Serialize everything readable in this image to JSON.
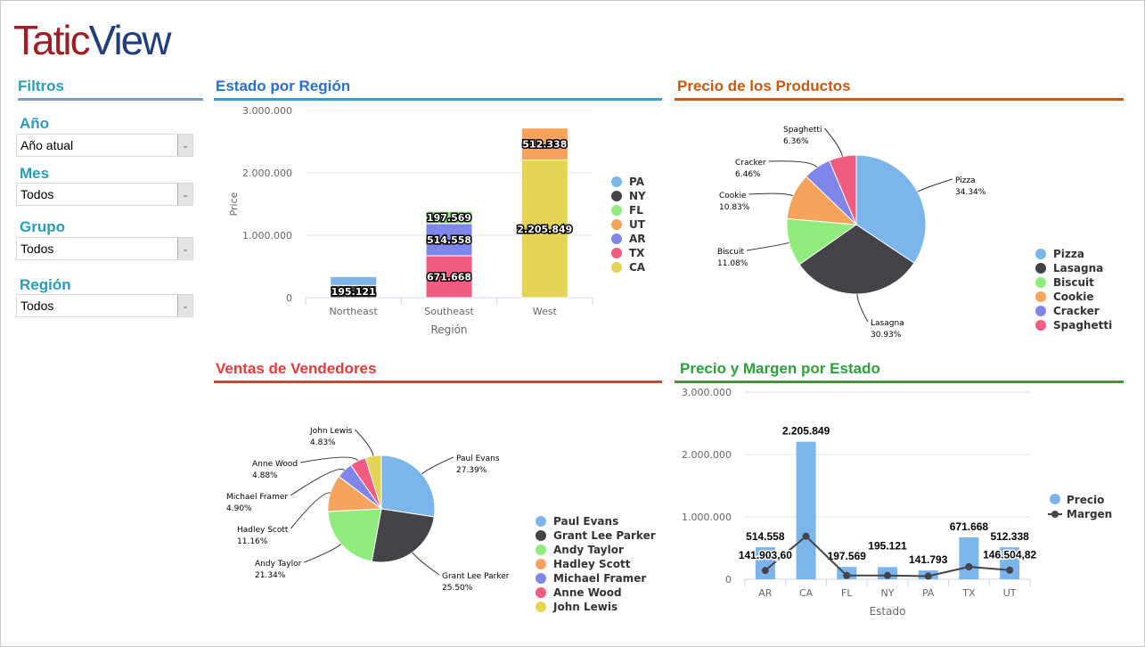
{
  "logo": {
    "part1": "Tatic",
    "part2": "View"
  },
  "filters": {
    "title": "Filtros",
    "items": [
      {
        "label": "Año",
        "value": "Año atual"
      },
      {
        "label": "Mes",
        "value": "Todos"
      },
      {
        "label": "Grupo",
        "value": "Todos"
      },
      {
        "label": "Región",
        "value": "Todos"
      }
    ]
  },
  "sections": {
    "region": "Estado por Región",
    "products": "Precio de los Productos",
    "sellers": "Ventas de Vendedores",
    "margin": "Precio y Margen por Estado"
  },
  "colors": {
    "PA": "#7cb5ec",
    "NY": "#434348",
    "FL": "#90ed7d",
    "UT": "#f7a35c",
    "AR": "#8085e9",
    "TX": "#f15c80",
    "CA": "#e4d354"
  },
  "chart_data": [
    {
      "type": "bar",
      "stacked": true,
      "xlabel": "Región",
      "ylabel": "Price",
      "ylim": [
        0,
        3000000
      ],
      "yticks": [
        "0",
        "1.000.000",
        "2.000.000",
        "3.000.000"
      ],
      "categories": [
        "Northeast",
        "Southeast",
        "West"
      ],
      "legend_position": "right",
      "series": [
        {
          "name": "PA",
          "values": [
            141793,
            0,
            0
          ],
          "labels": [
            "",
            "",
            ""
          ]
        },
        {
          "name": "NY",
          "values": [
            195121,
            0,
            0
          ],
          "labels": [
            "195.121",
            "",
            ""
          ]
        },
        {
          "name": "FL",
          "values": [
            0,
            197569,
            0
          ],
          "labels": [
            "",
            "197.569",
            ""
          ]
        },
        {
          "name": "UT",
          "values": [
            0,
            0,
            512338
          ],
          "labels": [
            "",
            "",
            "512.338"
          ]
        },
        {
          "name": "AR",
          "values": [
            0,
            514558,
            0
          ],
          "labels": [
            "",
            "514.558",
            ""
          ]
        },
        {
          "name": "TX",
          "values": [
            0,
            671668,
            0
          ],
          "labels": [
            "",
            "671.668",
            ""
          ]
        },
        {
          "name": "CA",
          "values": [
            0,
            0,
            2205849
          ],
          "labels": [
            "",
            "",
            "2.205.849"
          ]
        }
      ]
    },
    {
      "type": "pie",
      "legend_position": "right",
      "slices": [
        {
          "name": "Pizza",
          "value": 34.34,
          "label": "34.34%",
          "color": "#7cb5ec"
        },
        {
          "name": "Lasagna",
          "value": 30.93,
          "label": "30.93%",
          "color": "#434348"
        },
        {
          "name": "Biscuit",
          "value": 11.08,
          "label": "11.08%",
          "color": "#90ed7d"
        },
        {
          "name": "Cookie",
          "value": 10.83,
          "label": "10.83%",
          "color": "#f7a35c"
        },
        {
          "name": "Cracker",
          "value": 6.46,
          "label": "6.46%",
          "color": "#8085e9"
        },
        {
          "name": "Spaghetti",
          "value": 6.36,
          "label": "6.36%",
          "color": "#f15c80"
        }
      ]
    },
    {
      "type": "pie",
      "legend_position": "right",
      "slices": [
        {
          "name": "Paul Evans",
          "value": 27.39,
          "label": "27.39%",
          "color": "#7cb5ec"
        },
        {
          "name": "Grant Lee Parker",
          "value": 25.5,
          "label": "25.50%",
          "color": "#434348"
        },
        {
          "name": "Andy Taylor",
          "value": 21.34,
          "label": "21.34%",
          "color": "#90ed7d"
        },
        {
          "name": "Hadley Scott",
          "value": 11.16,
          "label": "11.16%",
          "color": "#f7a35c"
        },
        {
          "name": "Michael Framer",
          "value": 4.9,
          "label": "4.90%",
          "color": "#8085e9"
        },
        {
          "name": "Anne Wood",
          "value": 4.88,
          "label": "4.88%",
          "color": "#f15c80"
        },
        {
          "name": "John Lewis",
          "value": 4.83,
          "label": "4.83%",
          "color": "#e4d354"
        }
      ]
    },
    {
      "type": "bar+line",
      "xlabel": "Estado",
      "ylim": [
        0,
        3000000
      ],
      "yticks": [
        "0",
        "1.000.000",
        "2.000.000",
        "3.000.000"
      ],
      "legend_position": "right",
      "categories": [
        "AR",
        "CA",
        "FL",
        "NY",
        "PA",
        "TX",
        "UT"
      ],
      "series": [
        {
          "name": "Precio",
          "type": "bar",
          "color": "#7cb5ec",
          "values": [
            514558,
            2205849,
            197569,
            195121,
            141793,
            671668,
            512338
          ],
          "labels": [
            "514.558",
            "2.205.849",
            "197.569",
            "195.121",
            "141.793",
            "671.668",
            "512.338"
          ]
        },
        {
          "name": "Margen",
          "type": "line",
          "color": "#434348",
          "values": [
            141903.6,
            690000,
            60000,
            60000,
            50000,
            200000,
            146504.82
          ],
          "labels": [
            "141.903,60",
            "",
            "",
            "",
            "",
            "",
            "146.504,82"
          ]
        }
      ]
    }
  ]
}
